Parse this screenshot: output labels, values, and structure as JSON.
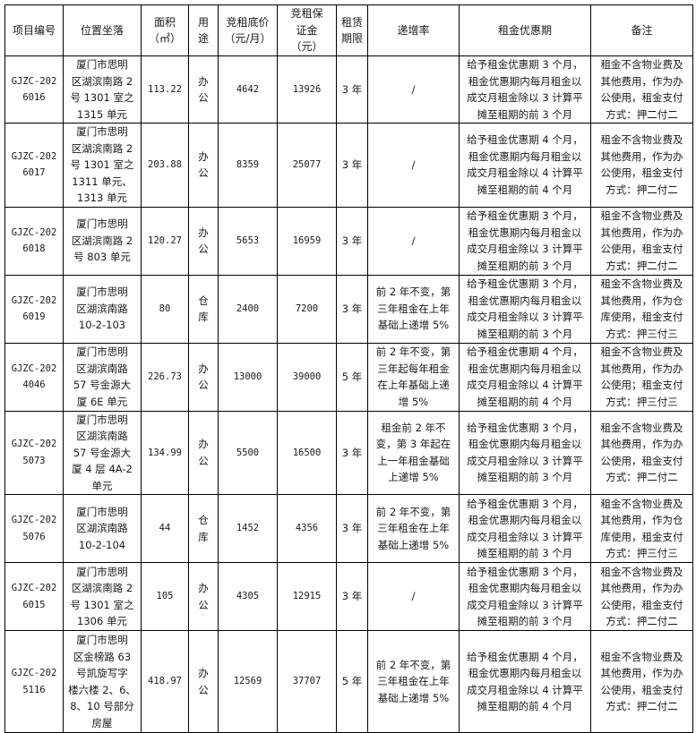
{
  "headers": [
    "项目编号",
    "位置坐落",
    "面积\n（㎡）",
    "用\n途",
    "竞租底价\n（元/月）",
    "竞租保\n证金\n（元）",
    "租赁\n期限",
    "递增率",
    "租金优惠期",
    "备注"
  ],
  "rows": [
    {
      "id": "GJZC-202\n6016",
      "location": "厦门市思明\n区湖滨南路 2\n号 1301 室之\n1315 单元",
      "area": "113.22",
      "use": "办\n公",
      "price": "4642",
      "deposit": "13926",
      "term": "3 年",
      "increase": "/",
      "discount": "给予租金优惠期 3 个月，\n租金优惠期内每月租金以\n成交月租金除以 3 计算平\n摊至租期的前 3 个月",
      "remark": "租金不含物业费及\n其他费用，作为办\n公使用，租金支付\n方式：押二付二"
    },
    {
      "id": "GJZC-202\n6017",
      "location": "厦门市思明\n区湖滨南路 2\n号 1301 室之\n1311 单元、\n1313 单元",
      "area": "203.88",
      "use": "办\n公",
      "price": "8359",
      "deposit": "25077",
      "term": "3 年",
      "increase": "/",
      "discount": "给予租金优惠期 4 个月，\n租金优惠期内每月租金以\n成交月租金除以 4 计算平\n摊至租期的前 4 个月",
      "remark": "租金不含物业费及\n其他费用，作为办\n公使用，租金支付\n方式：押二付二"
    },
    {
      "id": "GJZC-202\n6018",
      "location": "厦门市思明\n区湖滨南路 2\n号 803 单元",
      "area": "120.27",
      "use": "办\n公",
      "price": "5653",
      "deposit": "16959",
      "term": "3 年",
      "increase": "/",
      "discount": "给予租金优惠期 3 个月，\n租金优惠期内每月租金以\n成交月租金除以 3 计算平\n摊至租期的前 3 个月",
      "remark": "租金不含物业费及\n其他费用，作为办\n公使用，租金支付\n方式：押二付二"
    },
    {
      "id": "GJZC-202\n6019",
      "location": "厦门市思明\n区湖滨南路\n10-2-103",
      "area": "80",
      "use": "仓\n库",
      "price": "2400",
      "deposit": "7200",
      "term": "3 年",
      "increase": "前 2 年不变，第\n三年租金在上年\n基础上递增 5%",
      "discount": "给予租金优惠期 3 个月，\n租金优惠期内每月租金以\n成交月租金除以 3 计算平\n摊至租期的前 3 个月",
      "remark": "租金不含物业费及\n其他费用，作为仓\n库使用，租金支付\n方式：押三付三"
    },
    {
      "id": "GJZC-202\n4046",
      "location": "厦门市思明\n区湖滨南路\n57 号金源大\n厦 6E 单元",
      "area": "226.73",
      "use": "办\n公",
      "price": "13000",
      "deposit": "39000",
      "term": "5 年",
      "increase": "前 2 年不变，第\n三年起每年租金\n在上年基础上递\n增 5%",
      "discount": "给予租金优惠期 4 个月，\n租金优惠期内每月租金以\n成交月租金除以 4 计算平\n摊至租期的前 4 个月",
      "remark": "租金不含物业费及\n其他费用，作为办\n公使用；租金支付\n方式：押三付三"
    },
    {
      "id": "GJZC-202\n5073",
      "location": "厦门市思明\n区湖滨南路\n57 号金源大\n厦 4 层 4A-2\n单元",
      "area": "134.99",
      "use": "办\n公",
      "price": "5500",
      "deposit": "16500",
      "term": "3 年",
      "increase": "租金前 2 年不\n变，第 3 年起在\n上一年租金基础\n上递增 5%",
      "discount": "给予租金优惠期 3 个月，\n租金优惠期内每月租金以\n成交月租金除以 3 计算平\n摊至租期的前 3 个月",
      "remark": "租金不含物业费及\n其他费用，作为办\n公使用，租金支付\n方式：押二付二"
    },
    {
      "id": "GJZC-202\n5076",
      "location": "厦门市思明\n区湖滨南路\n10-2-104",
      "area": "44",
      "use": "仓\n库",
      "price": "1452",
      "deposit": "4356",
      "term": "3 年",
      "increase": "前 2 年不变，第\n三年租金在上年\n基础上递增 5%",
      "discount": "给予租金优惠期 3 个月，\n租金优惠期内每月租金以\n成交月租金除以 3 计算平\n摊至租期的前 3 个月",
      "remark": "租金不含物业费及\n其他费用，作为仓\n库使用，租金支付\n方式：押三付三"
    },
    {
      "id": "GJZC-202\n6015",
      "location": "厦门市思明\n区湖滨南路 2\n号 1301 室之\n1306 单元",
      "area": "105",
      "use": "办\n公",
      "price": "4305",
      "deposit": "12915",
      "term": "3 年",
      "increase": "/",
      "discount": "给予租金优惠期 3 个月，\n租金优惠期内每月租金以\n成交月租金除以 3 计算平\n摊至租期的前 3 个月",
      "remark": "租金不含物业费及\n其他费用，作为办\n公使用，租金支付\n方式：押二付二"
    },
    {
      "id": "GJZC-202\n5116",
      "location": "厦门市思明\n区金榜路 63\n号凯旋写字\n楼六楼 2、6、\n8、10 号部分\n房屋",
      "area": "418.97",
      "use": "办\n公",
      "price": "12569",
      "deposit": "37707",
      "term": "5 年",
      "increase": "前 2 年不变，第\n三年租金在上年\n基础上递增 5%",
      "discount": "给予租金优惠期 4 个月，\n租金优惠期内每月租金以\n成交月租金除以 4 计算平\n摊至租期的前 4 个月",
      "remark": "租金不含物业费及\n其他费用，作为办\n公使用，租金支付\n方式：押二付二"
    }
  ]
}
